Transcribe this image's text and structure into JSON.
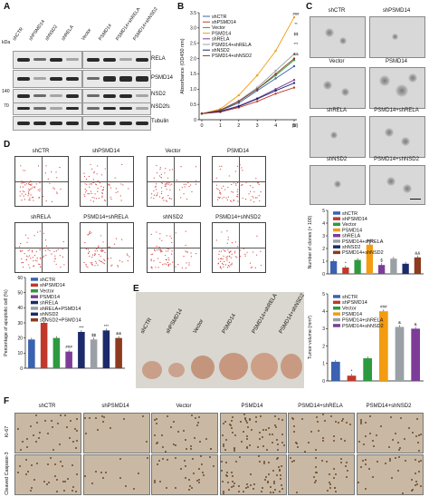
{
  "panel_letters": {
    "a": "A",
    "b": "B",
    "c": "C",
    "d": "D",
    "e": "E",
    "f": "F"
  },
  "panelA": {
    "kda_label": "kDa",
    "mw_markers": [
      "140",
      "70"
    ],
    "lanes_left": [
      "shCTR",
      "shPSMD14",
      "shNSD2",
      "shRELA"
    ],
    "lanes_right": [
      "Vector",
      "PSMD14",
      "PSMD14+shRELA",
      "PSMD14+shNSD2"
    ],
    "rows": [
      "RELA",
      "PSMD14",
      "NSD2",
      "NSD2",
      "Tubulin"
    ],
    "row_labels": [
      "RELA",
      "PSMD14",
      "NSD2",
      "NSD2fs",
      "Tubulin"
    ]
  },
  "panelB": {
    "chart_data": {
      "type": "line",
      "ylabel": "Absorbance (OD450 nm)",
      "xlabel": "(d)",
      "x": [
        0,
        1,
        2,
        3,
        4,
        5
      ],
      "ylim": [
        0,
        3.5
      ],
      "yticks": [
        "0",
        "0.5",
        "1.0",
        "1.5",
        "2.0",
        "2.5",
        "3.0",
        "3.5"
      ],
      "series": [
        {
          "name": "shCTR",
          "color": "#3a62b0",
          "values": [
            0.2,
            0.3,
            0.55,
            0.95,
            1.35,
            1.75
          ]
        },
        {
          "name": "shPSMD14",
          "color": "#c0392b",
          "values": [
            0.2,
            0.25,
            0.4,
            0.6,
            0.85,
            1.05
          ]
        },
        {
          "name": "Vector",
          "color": "#2e9a3f",
          "values": [
            0.2,
            0.3,
            0.6,
            1.0,
            1.45,
            1.95
          ]
        },
        {
          "name": "PSMD14",
          "color": "#f39c12",
          "values": [
            0.2,
            0.35,
            0.8,
            1.45,
            2.25,
            3.35
          ]
        },
        {
          "name": "shRELA",
          "color": "#7d3c98",
          "values": [
            0.2,
            0.28,
            0.45,
            0.7,
            1.0,
            1.3
          ]
        },
        {
          "name": "PSMD14+shRELA",
          "color": "#9aa0a6",
          "values": [
            0.2,
            0.32,
            0.62,
            1.05,
            1.6,
            2.15
          ]
        },
        {
          "name": "shNSD2",
          "color": "#1b2a6b",
          "values": [
            0.2,
            0.27,
            0.43,
            0.68,
            0.95,
            1.2
          ]
        },
        {
          "name": "PSMD14+shNSD2",
          "color": "#8e3a1e",
          "values": [
            0.2,
            0.31,
            0.6,
            1.0,
            1.5,
            2.0
          ]
        }
      ],
      "annotations": [
        "###",
        "**",
        "$$",
        "***",
        "&&"
      ]
    }
  },
  "panelC": {
    "images": [
      "shCTR",
      "shPSMD14",
      "Vector",
      "PSMD14",
      "shRELA",
      "PSMD14+shRELA",
      "shNSD2",
      "PSMD14+shNSD2"
    ],
    "chart_data": {
      "type": "bar",
      "ylabel": "Number of clones (× 100)",
      "ylim": [
        0,
        5
      ],
      "yticks": [
        "0",
        "1",
        "2",
        "3",
        "4",
        "5"
      ],
      "categories": [
        "shCTR",
        "shPSMD14",
        "Vector",
        "PSMD14",
        "shRELA",
        "PSMD14+shRELA",
        "shNSD2",
        "PSMD14+shNSD2"
      ],
      "values": [
        1.0,
        0.5,
        1.1,
        2.3,
        0.7,
        1.2,
        0.8,
        1.3
      ],
      "colors": [
        "#3a62b0",
        "#c0392b",
        "#2e9a3f",
        "#f39c12",
        "#7d3c98",
        "#9aa0a6",
        "#1b2a6b",
        "#8e3a1e"
      ],
      "annotations": [
        "*",
        "###",
        "$",
        "&&"
      ]
    }
  },
  "panelD": {
    "facs_labels": [
      "shCTR",
      "shPSMD14",
      "Vector",
      "PSMD14",
      "shRELA",
      "PSMD14+shRELA",
      "shNSD2",
      "PSMD14+shNSD2"
    ],
    "chart_data": {
      "type": "bar",
      "ylabel": "Percentage of apoptotic cell (%)",
      "ylim": [
        0,
        60
      ],
      "yticks": [
        "0",
        "10",
        "20",
        "30",
        "40",
        "50",
        "60"
      ],
      "categories": [
        "shCTR",
        "shPSMD14",
        "Vector",
        "PSMD14",
        "shRELA",
        "shRELA+PSMD14",
        "shNSD2",
        "shNSD2+PSMD14"
      ],
      "values": [
        19,
        30,
        20,
        11,
        24,
        19,
        25,
        20
      ],
      "colors": [
        "#3a62b0",
        "#c0392b",
        "#2e9a3f",
        "#7d3c98",
        "#1b2a6b",
        "#9aa0a6",
        "#1b2a6b",
        "#8e3a1e"
      ],
      "annotations": [
        "***",
        "###",
        "***",
        "$$",
        "***",
        "&&"
      ]
    }
  },
  "panelE": {
    "tumor_labels": [
      "shCTR",
      "shPSMD14",
      "Vector",
      "PSMD14",
      "PSMD14+shRELA",
      "PSMD14+shNSD2"
    ],
    "chart_data": {
      "type": "bar",
      "ylabel": "Tumor volume (mm³)",
      "ylim": [
        0,
        5
      ],
      "yticks": [
        "0",
        "1",
        "2",
        "3",
        "4",
        "5"
      ],
      "categories": [
        "shCTR",
        "shPSMD14",
        "Vector",
        "PSMD14",
        "PSMD14+shRELA",
        "PSMD14+shNSD2"
      ],
      "values": [
        1.1,
        0.3,
        1.3,
        4.0,
        3.1,
        3.0
      ],
      "colors": [
        "#3a62b0",
        "#c0392b",
        "#2e9a3f",
        "#f39c12",
        "#9aa0a6",
        "#7d3c98"
      ],
      "annotations": [
        "*",
        "###",
        "&",
        "&"
      ]
    }
  },
  "panelF": {
    "columns": [
      "shCTR",
      "shPSMD14",
      "Vector",
      "PSMD14",
      "PSMD14+shRELA",
      "PSMD14+shNSD2"
    ],
    "rows": [
      "Ki-67",
      "Cleaved Caspase-3"
    ]
  }
}
